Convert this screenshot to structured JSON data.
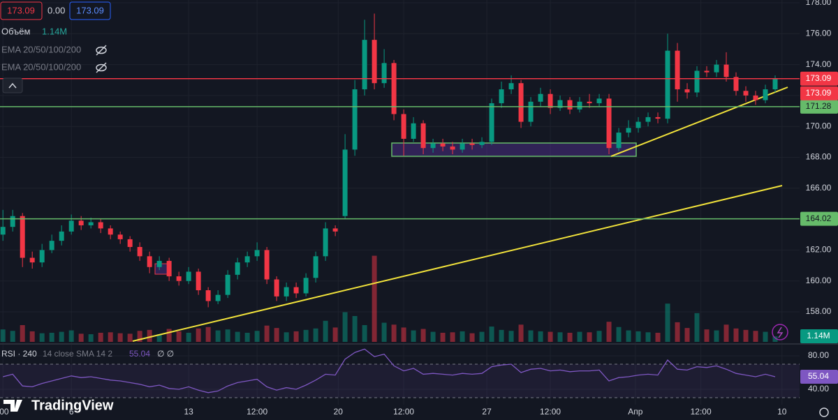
{
  "legend": {
    "price_boxes": [
      "173.09",
      "0.00",
      "173.09"
    ],
    "indicators": [
      "EMA 20/50/100/200",
      "EMA 20/50/100/200"
    ],
    "branding": "TradingView"
  },
  "chart_data": [
    {
      "type": "candlestick",
      "x": [
        0,
        1,
        2,
        3,
        4,
        5,
        6,
        7,
        8,
        9,
        10,
        11,
        12,
        13,
        14,
        15,
        16,
        17,
        18,
        19,
        20,
        21,
        22,
        23,
        24,
        25,
        26,
        27,
        28,
        29,
        30,
        31,
        32,
        33,
        34,
        35,
        36,
        37,
        38,
        39,
        40,
        41,
        42,
        43,
        44,
        45,
        46,
        47,
        48,
        49,
        50,
        51,
        52,
        53,
        54,
        55,
        56,
        57,
        58,
        59,
        60,
        61,
        62,
        63,
        64,
        65,
        66,
        67,
        68,
        69,
        70,
        71,
        72,
        73,
        74,
        75,
        76,
        77,
        78,
        79
      ],
      "open": [
        163.0,
        163.5,
        164.2,
        161.5,
        161.2,
        162.0,
        162.6,
        163.2,
        163.9,
        163.6,
        163.8,
        163.4,
        163.0,
        162.7,
        162.2,
        161.6,
        160.9,
        161.3,
        160.3,
        160.0,
        160.6,
        159.4,
        158.7,
        159.1,
        160.4,
        161.2,
        161.6,
        162.0,
        160.1,
        159.0,
        159.6,
        159.2,
        160.2,
        161.6,
        163.4,
        164.2,
        168.5,
        172.4,
        175.6,
        172.8,
        174.1,
        170.8,
        169.2,
        170.2,
        168.6,
        168.9,
        168.7,
        168.5,
        168.9,
        168.8,
        169.0,
        171.5,
        172.4,
        172.8,
        170.3,
        171.6,
        172.1,
        171.2,
        171.7,
        171.1,
        171.6,
        171.5,
        171.8,
        168.6,
        169.6,
        169.9,
        170.3,
        170.6,
        170.5,
        174.9,
        172.4,
        172.2,
        173.6,
        173.5,
        174.0,
        173.2,
        172.3,
        172.0,
        171.7,
        172.4
      ],
      "high": [
        164.6,
        164.6,
        164.4,
        161.9,
        162.4,
        163.0,
        163.6,
        164.3,
        164.2,
        164.1,
        164.0,
        163.6,
        163.2,
        162.9,
        162.5,
        161.9,
        161.6,
        161.5,
        160.6,
        160.9,
        160.8,
        159.6,
        159.4,
        160.7,
        161.5,
        161.9,
        162.5,
        162.2,
        160.3,
        159.9,
        159.9,
        160.5,
        161.9,
        163.8,
        163.6,
        169.5,
        173.0,
        176.9,
        177.3,
        175.0,
        174.3,
        171.1,
        170.6,
        170.4,
        169.2,
        169.2,
        169.0,
        169.2,
        169.2,
        169.3,
        171.8,
        172.9,
        173.3,
        173.0,
        171.9,
        172.5,
        172.4,
        172.0,
        171.9,
        171.9,
        172.1,
        172.1,
        172.1,
        169.9,
        170.4,
        170.6,
        170.9,
        170.9,
        176.0,
        175.4,
        172.8,
        173.9,
        173.9,
        174.3,
        174.8,
        173.5,
        172.6,
        172.3,
        172.7,
        173.3
      ],
      "low": [
        162.6,
        163.2,
        160.9,
        160.8,
        160.9,
        161.8,
        162.3,
        163.0,
        163.3,
        163.4,
        163.1,
        162.7,
        162.4,
        161.9,
        161.3,
        160.5,
        160.7,
        160.0,
        159.7,
        159.8,
        159.1,
        158.3,
        158.5,
        158.9,
        160.1,
        160.9,
        161.3,
        159.8,
        158.7,
        158.7,
        158.9,
        159.0,
        159.9,
        161.3,
        162.9,
        164.0,
        168.1,
        172.0,
        172.4,
        172.5,
        170.4,
        168.1,
        169.0,
        168.2,
        168.3,
        168.4,
        168.2,
        168.3,
        168.5,
        168.6,
        168.8,
        171.2,
        172.1,
        169.9,
        170.0,
        171.3,
        170.8,
        171.0,
        170.8,
        170.9,
        171.2,
        171.3,
        168.2,
        168.4,
        169.3,
        169.6,
        170.0,
        170.2,
        170.2,
        171.6,
        171.8,
        171.9,
        173.2,
        173.2,
        172.9,
        172.0,
        171.6,
        171.4,
        171.5,
        172.2
      ],
      "close": [
        163.5,
        164.2,
        161.5,
        161.2,
        162.0,
        162.6,
        163.2,
        163.9,
        163.6,
        163.8,
        163.4,
        163.0,
        162.7,
        162.2,
        161.6,
        160.9,
        161.3,
        160.3,
        160.0,
        160.6,
        159.4,
        158.7,
        159.1,
        160.4,
        161.2,
        161.6,
        162.0,
        160.1,
        159.0,
        159.6,
        159.2,
        160.2,
        161.6,
        163.4,
        163.2,
        168.5,
        172.4,
        175.6,
        172.8,
        174.1,
        170.8,
        169.2,
        170.2,
        168.6,
        168.9,
        168.7,
        168.5,
        168.9,
        168.8,
        169.0,
        171.5,
        172.4,
        172.8,
        170.3,
        171.6,
        172.1,
        171.2,
        171.7,
        171.1,
        171.6,
        171.5,
        171.8,
        168.6,
        169.6,
        169.9,
        170.3,
        170.6,
        170.5,
        174.9,
        172.4,
        172.2,
        173.6,
        173.5,
        174.0,
        173.2,
        172.3,
        172.0,
        171.7,
        172.4,
        173.09
      ],
      "colors": {
        "up": "#089981",
        "down": "#f23645"
      },
      "xlim": [
        -0.3,
        81.5
      ],
      "ylim": [
        156.06,
        178.18
      ],
      "yticks": [
        {
          "value": 158,
          "label": "158.00"
        },
        {
          "value": 160,
          "label": "160.00"
        },
        {
          "value": 162,
          "label": "162.00"
        },
        {
          "value": 164,
          "label": "164.00"
        },
        {
          "value": 166,
          "label": "166.00"
        },
        {
          "value": 168,
          "label": "168.00"
        },
        {
          "value": 170,
          "label": "170.00"
        },
        {
          "value": 172,
          "label": "172.00"
        },
        {
          "value": 174,
          "label": "174.00"
        },
        {
          "value": 176,
          "label": "176.00"
        },
        {
          "value": 178,
          "label": "178.00"
        }
      ],
      "price_lines": [
        {
          "value": 173.09,
          "color": "#f23645"
        },
        {
          "value": 171.28,
          "color": "#66bb6a"
        },
        {
          "value": 164.02,
          "color": "#66bb6a"
        }
      ],
      "grid": true
    },
    {
      "type": "bar",
      "name": "Объём",
      "current_label": "1.14M",
      "values": [
        2600000,
        2300000,
        3500000,
        2200000,
        1800000,
        1900000,
        2100000,
        2400000,
        1700000,
        1600000,
        1900000,
        2000000,
        1800000,
        1700000,
        2300000,
        2500000,
        1600000,
        2700000,
        2200000,
        1900000,
        2800000,
        3100000,
        2400000,
        2600000,
        2100000,
        1900000,
        2300000,
        3400000,
        2900000,
        2000000,
        2200000,
        2500000,
        2800000,
        4400000,
        3000000,
        6200000,
        5400000,
        3500000,
        18000000,
        4000000,
        3600000,
        3000000,
        2400000,
        2700000,
        2100000,
        1900000,
        2000000,
        2200000,
        1800000,
        2100000,
        3200000,
        2500000,
        2300000,
        3600000,
        2400000,
        2200000,
        2100000,
        2000000,
        1900000,
        2100000,
        2000000,
        2300000,
        4200000,
        3100000,
        2400000,
        2200000,
        2000000,
        1900000,
        8000000,
        4100000,
        2900000,
        6000000,
        2600000,
        2400000,
        3600000,
        2800000,
        2500000,
        2300000,
        2100000,
        1140000
      ],
      "colors": {
        "up": "rgba(8,153,129,0.5)",
        "down": "rgba(242,54,69,0.5)"
      },
      "ylim": [
        0,
        35000000
      ]
    },
    {
      "type": "line",
      "title": "RSI · 240",
      "params": "14 close SMA 14 2",
      "empty_values": "∅ ∅",
      "color": "#7e57c2",
      "values": [
        55,
        58,
        44,
        43,
        47,
        50,
        53,
        56,
        54,
        55,
        53,
        51,
        50,
        48,
        46,
        43,
        45,
        41,
        40,
        43,
        39,
        36,
        38,
        44,
        48,
        50,
        52,
        43,
        39,
        42,
        40,
        45,
        51,
        58,
        57,
        76,
        84,
        88,
        79,
        82,
        68,
        62,
        65,
        58,
        59,
        58,
        57,
        59,
        58,
        59,
        67,
        69,
        70,
        60,
        64,
        65,
        62,
        63,
        61,
        62,
        62,
        63,
        50,
        54,
        55,
        57,
        58,
        57,
        75,
        64,
        63,
        67,
        66,
        68,
        64,
        59,
        57,
        55,
        58,
        55.04
      ],
      "band": [
        30,
        70
      ],
      "ylim": [
        21.7,
        92.5
      ],
      "yticks": [
        {
          "value": 40,
          "label": "40.00"
        },
        {
          "value": 80,
          "label": "80.00"
        }
      ],
      "xticks": [
        {
          "value": 0,
          "label": ":00"
        },
        {
          "value": 7,
          "label": "6"
        },
        {
          "value": 19,
          "label": "13"
        },
        {
          "value": 26,
          "label": "12:00"
        },
        {
          "value": 34.3,
          "label": "20"
        },
        {
          "value": 41,
          "label": "12:00"
        },
        {
          "value": 49.5,
          "label": "27"
        },
        {
          "value": 56,
          "label": "12:00"
        },
        {
          "value": 64.7,
          "label": "Апр"
        },
        {
          "value": 71.4,
          "label": "12:00"
        },
        {
          "value": 79.7,
          "label": "10"
        }
      ]
    }
  ]
}
